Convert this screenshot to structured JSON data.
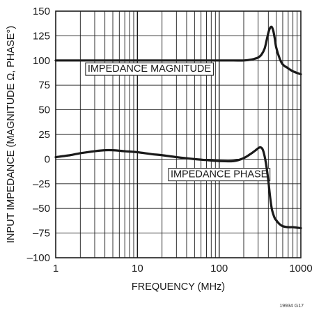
{
  "chart_data": {
    "type": "line",
    "xlabel": "FREQUENCY (MHz)",
    "ylabel": "INPUT IMPEDANCE (MAGNITUDE Ω, PHASE°)",
    "x_scale": "log",
    "xlim": [
      1,
      1000
    ],
    "ylim": [
      -100,
      150
    ],
    "x_ticks": [
      1,
      10,
      100,
      1000
    ],
    "x_tick_labels": [
      "1",
      "10",
      "100",
      "1000"
    ],
    "y_ticks": [
      150,
      125,
      100,
      75,
      50,
      25,
      0,
      -25,
      -50,
      -75,
      -100
    ],
    "y_tick_labels": [
      "150",
      "125",
      "100",
      "75",
      "50",
      "25",
      "0",
      "–25",
      "–50",
      "–75",
      "–100"
    ],
    "grid": true,
    "legend": "none",
    "annotations": [
      {
        "text": "IMPEDANCE MAGNITUDE",
        "x": 14,
        "y": 92
      },
      {
        "text": "IMPEDANCE PHASE",
        "x": 100,
        "y": -15
      }
    ],
    "footnote": "19934 G17",
    "series": [
      {
        "name": "IMPEDANCE MAGNITUDE",
        "color": "#1a1a1a",
        "x": [
          1,
          2,
          5,
          10,
          20,
          50,
          100,
          150,
          200,
          250,
          300,
          330,
          360,
          380,
          400,
          420,
          440,
          460,
          480,
          500,
          550,
          600,
          700,
          800,
          1000
        ],
        "y": [
          100,
          100,
          100,
          100,
          100,
          100,
          100,
          100,
          100,
          101,
          103,
          106,
          112,
          120,
          128,
          133,
          134,
          130,
          122,
          113,
          102,
          96,
          92,
          89,
          86
        ]
      },
      {
        "name": "IMPEDANCE PHASE",
        "color": "#1a1a1a",
        "x": [
          1,
          1.5,
          2,
          3,
          4,
          5,
          7,
          10,
          15,
          20,
          30,
          50,
          70,
          100,
          150,
          200,
          250,
          280,
          300,
          320,
          340,
          360,
          380,
          400,
          420,
          440,
          460,
          480,
          500,
          550,
          600,
          700,
          800,
          1000
        ],
        "y": [
          2,
          4,
          6,
          8,
          9,
          9,
          8,
          7,
          5,
          4,
          2,
          0,
          -1,
          -2,
          -2,
          1,
          6,
          9,
          11,
          12,
          10,
          3,
          -8,
          -22,
          -38,
          -50,
          -56,
          -60,
          -62,
          -66,
          -68,
          -69,
          -69,
          -70
        ]
      }
    ]
  }
}
